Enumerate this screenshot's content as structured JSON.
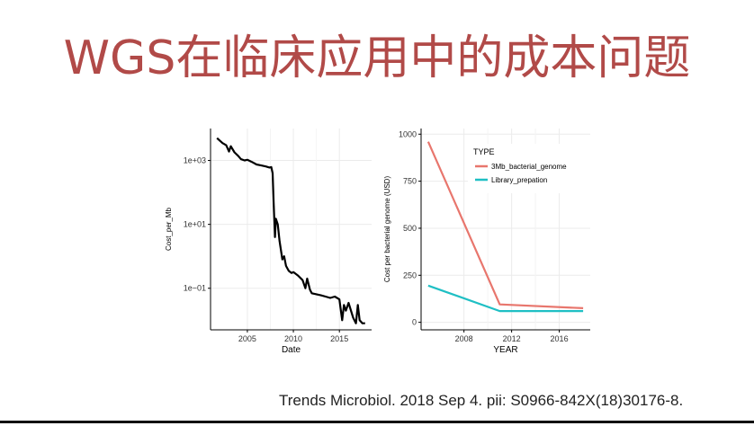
{
  "slide": {
    "title": "WGS在临床应用中的成本问题",
    "citation": "Trends Microbiol. 2018 Sep 4. pii: S0966-842X(18)30176-8."
  },
  "chart_data": [
    {
      "type": "line",
      "xlabel": "Date",
      "ylabel": "Cost_per_Mb",
      "y_scale": "log",
      "xlim": [
        2001,
        2018.5
      ],
      "ylim": [
        0.005,
        10000
      ],
      "x_ticks": [
        2005,
        2010,
        2015
      ],
      "x_tick_labels": [
        "2005",
        "2010",
        "2015"
      ],
      "y_ticks": [
        0.1,
        10,
        1000
      ],
      "y_tick_labels": [
        "1e−01",
        "1e+01",
        "1e+03"
      ],
      "grid": true,
      "color": "#000000",
      "series": [
        {
          "x": [
            2001.7,
            2002.3,
            2002.7,
            2003.0,
            2003.2,
            2003.6,
            2004.0,
            2004.3,
            2004.7,
            2005.0,
            2005.5,
            2006.0,
            2006.5,
            2007.0,
            2007.4,
            2007.6,
            2007.75,
            2007.85,
            2008.0,
            2008.1,
            2008.3,
            2008.5,
            2008.8,
            2009.0,
            2009.2,
            2009.5,
            2009.8,
            2010.0,
            2010.5,
            2011.0,
            2011.3,
            2011.5,
            2011.8,
            2012.0,
            2012.5,
            2013.0,
            2013.5,
            2014.0,
            2014.5,
            2015.0,
            2015.3,
            2015.5,
            2015.7,
            2016.0,
            2016.5,
            2016.8,
            2017.0,
            2017.2,
            2017.5,
            2017.8
          ],
          "y": [
            5000,
            3500,
            3000,
            1900,
            2800,
            1800,
            1400,
            1100,
            1000,
            1050,
            900,
            750,
            700,
            650,
            600,
            620,
            400,
            50,
            4,
            15,
            10,
            3,
            0.8,
            1.0,
            0.5,
            0.35,
            0.3,
            0.32,
            0.25,
            0.18,
            0.1,
            0.2,
            0.09,
            0.07,
            0.065,
            0.06,
            0.055,
            0.05,
            0.055,
            0.045,
            0.01,
            0.03,
            0.02,
            0.035,
            0.012,
            0.008,
            0.03,
            0.01,
            0.008,
            0.008
          ]
        }
      ]
    },
    {
      "type": "line",
      "xlabel": "YEAR",
      "ylabel": "Cost per bacterial genome (USD)",
      "xlim": [
        2004.4,
        2018.6
      ],
      "ylim": [
        -40,
        1030
      ],
      "x_ticks": [
        2008,
        2012,
        2016
      ],
      "x_tick_labels": [
        "2008",
        "2012",
        "2016"
      ],
      "y_ticks": [
        0,
        250,
        500,
        750,
        1000
      ],
      "y_tick_labels": [
        "0",
        "250",
        "500",
        "750",
        "1000"
      ],
      "grid": true,
      "legend": {
        "title": "TYPE",
        "placement": "top-right"
      },
      "series": [
        {
          "name": "3Mb_bacterial_genome",
          "color": "#e8766d",
          "x": [
            2005,
            2011,
            2018
          ],
          "y": [
            960,
            95,
            75
          ]
        },
        {
          "name": "Library_prepation",
          "color": "#1fbfc4",
          "x": [
            2005,
            2011,
            2018
          ],
          "y": [
            195,
            60,
            60
          ]
        }
      ]
    }
  ]
}
